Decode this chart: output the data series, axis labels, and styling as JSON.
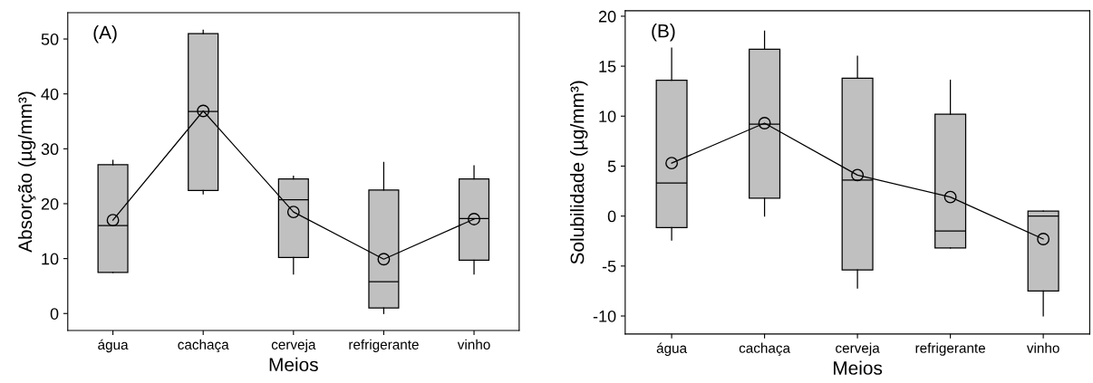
{
  "chart_data": [
    {
      "type": "box",
      "xlabel": "Meios",
      "ylabel": "Absorção (µg/mm³)",
      "annotations": [
        "(A)"
      ],
      "categories": [
        "água",
        "cachaça",
        "cerveja",
        "refrigerante",
        "vinho"
      ],
      "ylim": [
        -3.1,
        54.8
      ],
      "yticks": [
        0,
        10,
        20,
        30,
        40,
        50
      ],
      "grid": false,
      "legend": false,
      "series": [
        {
          "color": "#c0c0c0",
          "boxes": [
            {
              "low": 7.5,
              "q1": 7.5,
              "median": 16.0,
              "q3": 27.1,
              "high": 27.9
            },
            {
              "low": 21.8,
              "q1": 22.4,
              "median": 36.8,
              "q3": 51.0,
              "high": 51.6
            },
            {
              "low": 7.2,
              "q1": 10.2,
              "median": 20.7,
              "q3": 24.5,
              "high": 25.0
            },
            {
              "low": 0.0,
              "q1": 1.0,
              "median": 5.8,
              "q3": 22.5,
              "high": 27.5
            },
            {
              "low": 7.2,
              "q1": 9.7,
              "median": 17.3,
              "q3": 24.5,
              "high": 26.9
            }
          ]
        },
        {
          "type": "line",
          "color": "#000000",
          "marker": "circle",
          "line_style": "solid",
          "values": [
            17.0,
            36.9,
            18.5,
            9.9,
            17.2
          ]
        }
      ]
    },
    {
      "type": "box",
      "xlabel": "Meios",
      "ylabel": "Solubilidade (µg/mm³)",
      "annotations": [
        "(B)"
      ],
      "categories": [
        "água",
        "cachaça",
        "cerveja",
        "refrigerante",
        "vinho"
      ],
      "ylim": [
        -11.8,
        20.55
      ],
      "yticks": [
        {
          "value": -10,
          "label": "-10"
        },
        {
          "value": -5,
          "label": "-5"
        },
        0,
        5,
        10,
        15,
        20
      ],
      "grid": false,
      "legend": false,
      "series": [
        {
          "color": "#c0c0c0",
          "boxes": [
            {
              "low": -2.4,
              "q1": -1.15,
              "median": 3.3,
              "q3": 13.6,
              "high": 16.8
            },
            {
              "low": 0.0,
              "q1": 1.8,
              "median": 9.2,
              "q3": 16.7,
              "high": 18.5
            },
            {
              "low": -7.2,
              "q1": -5.4,
              "median": 3.6,
              "q3": 13.8,
              "high": 16.0
            },
            {
              "low": -3.2,
              "q1": -3.2,
              "median": -1.5,
              "q3": 10.2,
              "high": 13.6
            },
            {
              "low": -10.0,
              "q1": -7.5,
              "median": 0.0,
              "q3": 0.5,
              "high": 0.5
            }
          ]
        },
        {
          "type": "line",
          "color": "#000000",
          "marker": "circle",
          "line_style": "solid",
          "values": [
            5.3,
            9.3,
            4.1,
            1.9,
            -2.3
          ]
        }
      ]
    }
  ]
}
